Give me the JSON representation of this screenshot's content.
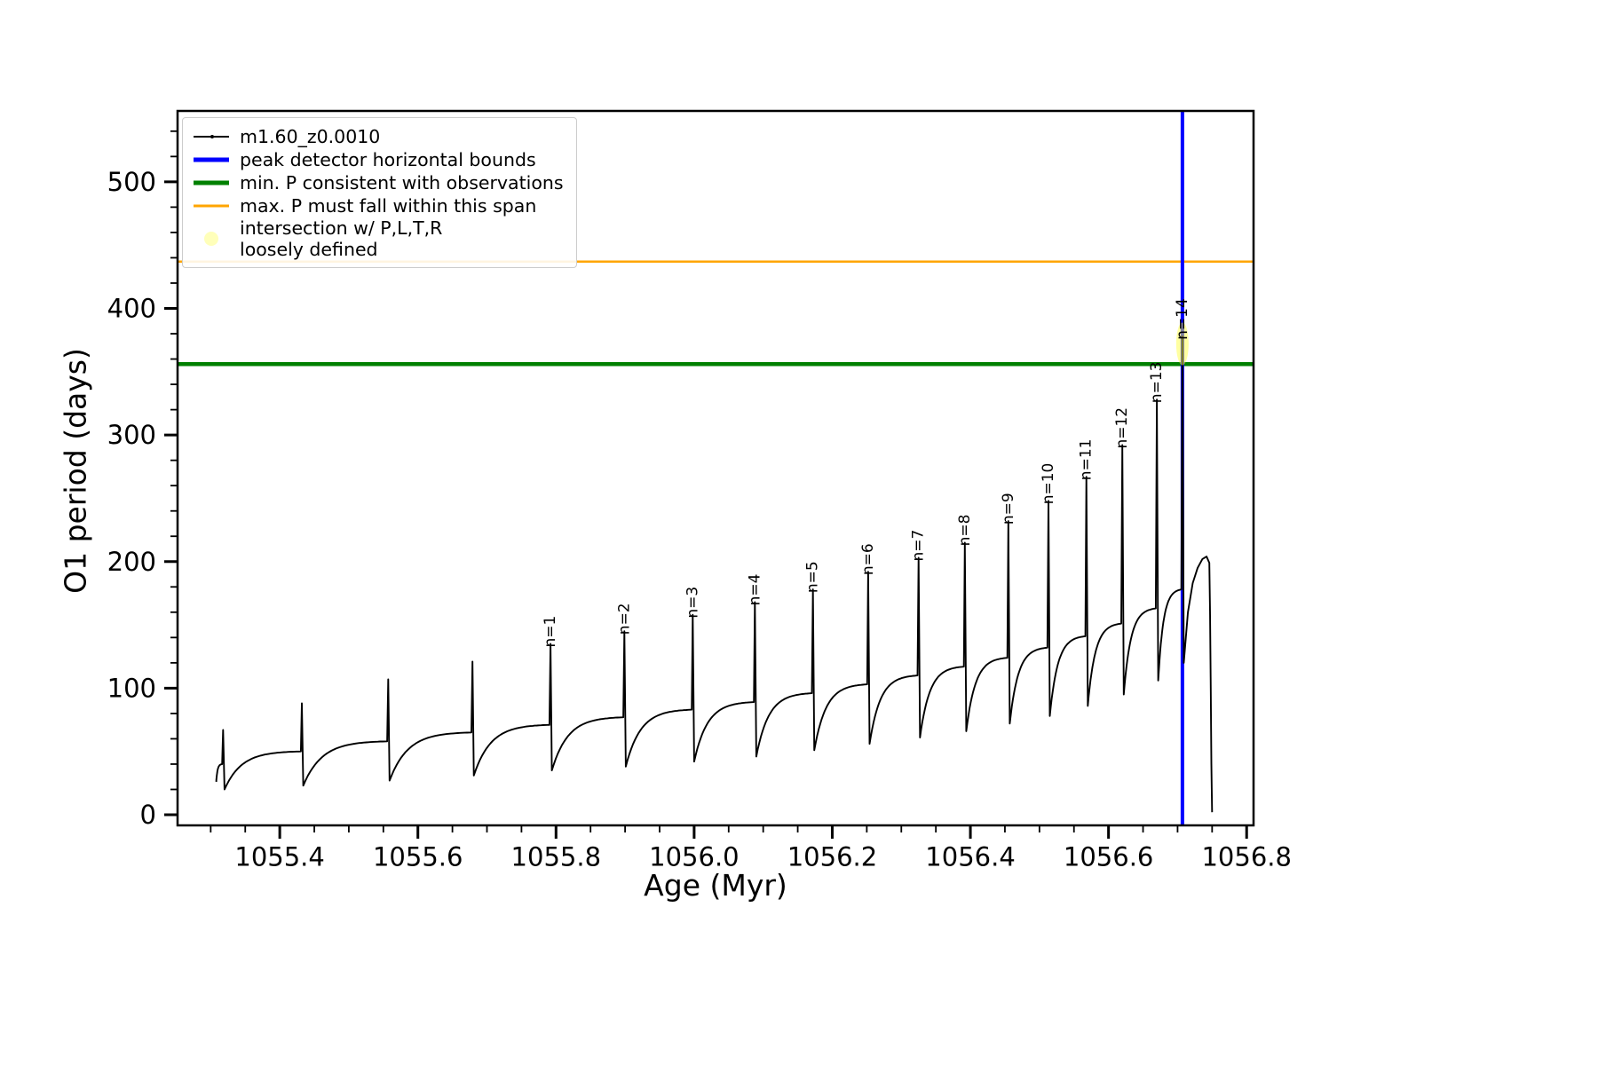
{
  "figure": {
    "xlabel": "Age (Myr)",
    "ylabel": "O1 period (days)"
  },
  "legend": {
    "entries": [
      {
        "label": "m1.60_z0.0010",
        "color": "#000000",
        "type": "line-marker"
      },
      {
        "label": "peak detector horizontal bounds",
        "color": "#0000ff",
        "type": "line-thick"
      },
      {
        "label": "min. P consistent with observations",
        "color": "#008000",
        "type": "line-thick"
      },
      {
        "label": "max. P must fall within this span",
        "color": "#ffa500",
        "type": "line"
      },
      {
        "label_line1": "intersection w/ P,L,T,R",
        "label_line2": "loosely defined",
        "color": "#ffff66",
        "type": "dot"
      }
    ]
  },
  "chart_data": {
    "type": "line",
    "title": "",
    "xlabel": "Age (Myr)",
    "ylabel": "O1 period (days)",
    "series_name": "m1.60_z0.0010",
    "xlim": [
      1055.252,
      1056.81
    ],
    "ylim": [
      -8.4,
      556
    ],
    "xticks": [
      1055.4,
      1055.6,
      1055.8,
      1056.0,
      1056.2,
      1056.4,
      1056.6,
      1056.8
    ],
    "xtick_labels": [
      "1055.4",
      "1055.6",
      "1055.8",
      "1056.0",
      "1056.2",
      "1056.4",
      "1056.6",
      "1056.8"
    ],
    "yticks": [
      0,
      100,
      200,
      300,
      400,
      500
    ],
    "ytick_labels": [
      "0",
      "100",
      "200",
      "300",
      "400",
      "500"
    ],
    "x_minor_step": 0.05,
    "y_minor_step": 20,
    "grid": false,
    "legend_position": "upper-left",
    "line_color": "#000000",
    "cycles": [
      {
        "t0": 1055.308,
        "t1": 1055.318,
        "v0": 26,
        "v1": 40,
        "peak": 67,
        "label": null
      },
      {
        "t0": 1055.32,
        "t1": 1055.432,
        "v0": 20,
        "v1": 50,
        "peak": 88,
        "label": null
      },
      {
        "t0": 1055.434,
        "t1": 1055.557,
        "v0": 23,
        "v1": 58,
        "peak": 107,
        "label": null
      },
      {
        "t0": 1055.559,
        "t1": 1055.679,
        "v0": 27,
        "v1": 65,
        "peak": 121,
        "label": null
      },
      {
        "t0": 1055.681,
        "t1": 1055.792,
        "v0": 31,
        "v1": 71,
        "peak": 135,
        "label": "n=1"
      },
      {
        "t0": 1055.794,
        "t1": 1055.899,
        "v0": 35,
        "v1": 77,
        "peak": 145,
        "label": "n=2"
      },
      {
        "t0": 1055.901,
        "t1": 1055.998,
        "v0": 38,
        "v1": 83,
        "peak": 158,
        "label": "n=3"
      },
      {
        "t0": 1056.0,
        "t1": 1056.088,
        "v0": 42,
        "v1": 89,
        "peak": 168,
        "label": "n=4"
      },
      {
        "t0": 1056.09,
        "t1": 1056.172,
        "v0": 46,
        "v1": 96,
        "peak": 178,
        "label": "n=5"
      },
      {
        "t0": 1056.174,
        "t1": 1056.252,
        "v0": 51,
        "v1": 103,
        "peak": 192,
        "label": "n=6"
      },
      {
        "t0": 1056.254,
        "t1": 1056.325,
        "v0": 56,
        "v1": 110,
        "peak": 203,
        "label": "n=7"
      },
      {
        "t0": 1056.327,
        "t1": 1056.392,
        "v0": 61,
        "v1": 117,
        "peak": 215,
        "label": "n=8"
      },
      {
        "t0": 1056.394,
        "t1": 1056.455,
        "v0": 66,
        "v1": 124,
        "peak": 232,
        "label": "n=9"
      },
      {
        "t0": 1056.457,
        "t1": 1056.513,
        "v0": 72,
        "v1": 132,
        "peak": 248,
        "label": "n=10"
      },
      {
        "t0": 1056.515,
        "t1": 1056.568,
        "v0": 78,
        "v1": 141,
        "peak": 267,
        "label": "n=11"
      },
      {
        "t0": 1056.57,
        "t1": 1056.62,
        "v0": 86,
        "v1": 151,
        "peak": 292,
        "label": "n=12"
      },
      {
        "t0": 1056.622,
        "t1": 1056.67,
        "v0": 95,
        "v1": 163,
        "peak": 328,
        "label": "n=13"
      },
      {
        "t0": 1056.672,
        "t1": 1056.707,
        "v0": 106,
        "v1": 178,
        "peak": 378,
        "label": "n=14"
      }
    ],
    "tail": [
      [
        1056.709,
        120
      ],
      [
        1056.715,
        160
      ],
      [
        1056.722,
        183
      ],
      [
        1056.729,
        195
      ],
      [
        1056.736,
        202
      ],
      [
        1056.742,
        204
      ],
      [
        1056.746,
        199
      ],
      [
        1056.747,
        160
      ],
      [
        1056.748,
        100
      ],
      [
        1056.749,
        40
      ],
      [
        1056.75,
        2
      ]
    ],
    "vline": {
      "x": 1056.707,
      "color": "#0000ff",
      "width": 4,
      "label": "peak detector horizontal bounds"
    },
    "hlines": [
      {
        "y": 356,
        "color": "#008000",
        "width": 4.5,
        "label": "min. P consistent with observations"
      },
      {
        "y": 437,
        "color": "#ffa500",
        "width": 2.5,
        "label": "max. P must fall within this span"
      }
    ],
    "marker": {
      "x": 1056.707,
      "y": 372,
      "color": "#ffff44",
      "opacity": 0.5,
      "label": "intersection w/ P,L,T,R loosely defined"
    }
  }
}
